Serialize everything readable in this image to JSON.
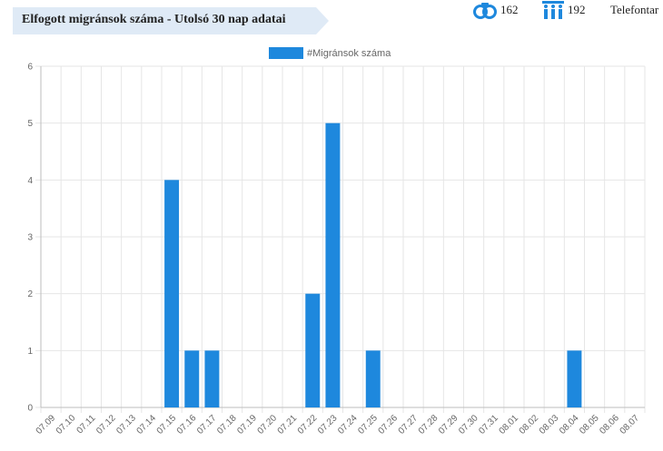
{
  "header": {
    "title": "Elfogott migránsok száma - Utolsó 30 nap adatai",
    "stats": [
      {
        "icon": "handcuffs-icon",
        "value": "162"
      },
      {
        "icon": "people-group-icon",
        "value": "192"
      },
      {
        "icon": "none",
        "value": "Telefontar"
      }
    ]
  },
  "colors": {
    "bar": "#1e88dd",
    "banner": "#dfeaf6",
    "grid": "#e6e6e6"
  },
  "chart_data": {
    "type": "bar",
    "categories": [
      "07.09",
      "07.10",
      "07.11",
      "07.12",
      "07.13",
      "07.14",
      "07.15",
      "07.16",
      "07.17",
      "07.18",
      "07.19",
      "07.20",
      "07.21",
      "07.22",
      "07.23",
      "07.24",
      "07.25",
      "07.26",
      "07.27",
      "07.28",
      "07.29",
      "07.30",
      "07.31",
      "08.01",
      "08.02",
      "08.03",
      "08.04",
      "08.05",
      "08.06",
      "08.07"
    ],
    "series": [
      {
        "name": "#Migránsok száma",
        "values": [
          0,
          0,
          0,
          0,
          0,
          0,
          4,
          1,
          1,
          0,
          0,
          0,
          0,
          2,
          5,
          0,
          1,
          0,
          0,
          0,
          0,
          0,
          0,
          0,
          0,
          0,
          1,
          0,
          0,
          0
        ]
      }
    ],
    "ylim": [
      0,
      6
    ],
    "yticks": [
      0,
      1,
      2,
      3,
      4,
      5,
      6
    ],
    "grid": true,
    "legend": "top-center"
  }
}
